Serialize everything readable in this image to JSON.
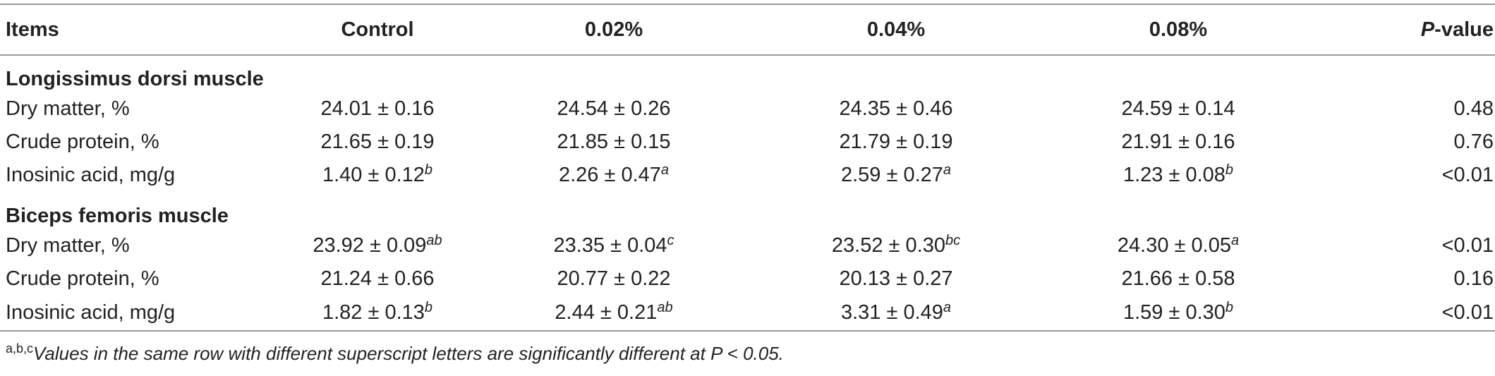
{
  "table": {
    "headers": [
      "Items",
      "Control",
      "0.02%",
      "0.04%",
      "0.08%",
      "P",
      "-value"
    ],
    "sections": [
      {
        "title": "Longissimus dorsi muscle",
        "rows": [
          {
            "item": "Dry matter, %",
            "values": [
              {
                "v": "24.01 ± 0.16",
                "sup": ""
              },
              {
                "v": "24.54 ± 0.26",
                "sup": ""
              },
              {
                "v": "24.35 ± 0.46",
                "sup": ""
              },
              {
                "v": "24.59 ± 0.14",
                "sup": ""
              }
            ],
            "p": "0.48"
          },
          {
            "item": "Crude protein, %",
            "values": [
              {
                "v": "21.65 ± 0.19",
                "sup": ""
              },
              {
                "v": "21.85 ± 0.15",
                "sup": ""
              },
              {
                "v": "21.79 ± 0.19",
                "sup": ""
              },
              {
                "v": "21.91 ± 0.16",
                "sup": ""
              }
            ],
            "p": "0.76"
          },
          {
            "item": "Inosinic acid, mg/g",
            "values": [
              {
                "v": "1.40 ± 0.12",
                "sup": "b"
              },
              {
                "v": "2.26 ± 0.47",
                "sup": "a"
              },
              {
                "v": "2.59 ± 0.27",
                "sup": "a"
              },
              {
                "v": "1.23 ± 0.08",
                "sup": "b"
              }
            ],
            "p": "<0.01"
          }
        ]
      },
      {
        "title": "Biceps femoris muscle",
        "rows": [
          {
            "item": "Dry matter, %",
            "values": [
              {
                "v": "23.92 ± 0.09",
                "sup": "ab"
              },
              {
                "v": "23.35 ± 0.04",
                "sup": "c"
              },
              {
                "v": "23.52 ± 0.30",
                "sup": "bc"
              },
              {
                "v": "24.30 ± 0.05",
                "sup": "a"
              }
            ],
            "p": "<0.01"
          },
          {
            "item": "Crude protein, %",
            "values": [
              {
                "v": "21.24 ± 0.66",
                "sup": ""
              },
              {
                "v": "20.77 ± 0.22",
                "sup": ""
              },
              {
                "v": "20.13 ± 0.27",
                "sup": ""
              },
              {
                "v": "21.66 ± 0.58",
                "sup": ""
              }
            ],
            "p": "0.16"
          },
          {
            "item": "Inosinic acid, mg/g",
            "values": [
              {
                "v": "1.82 ± 0.13",
                "sup": "b"
              },
              {
                "v": "2.44 ± 0.21",
                "sup": "ab"
              },
              {
                "v": "3.31 ± 0.49",
                "sup": "a"
              },
              {
                "v": "1.59 ± 0.30",
                "sup": "b"
              }
            ],
            "p": "<0.01"
          }
        ]
      }
    ]
  },
  "footnote": {
    "marks": "a,b,c",
    "text": "Values in the same row with different superscript letters are significantly different at P < 0.05."
  }
}
